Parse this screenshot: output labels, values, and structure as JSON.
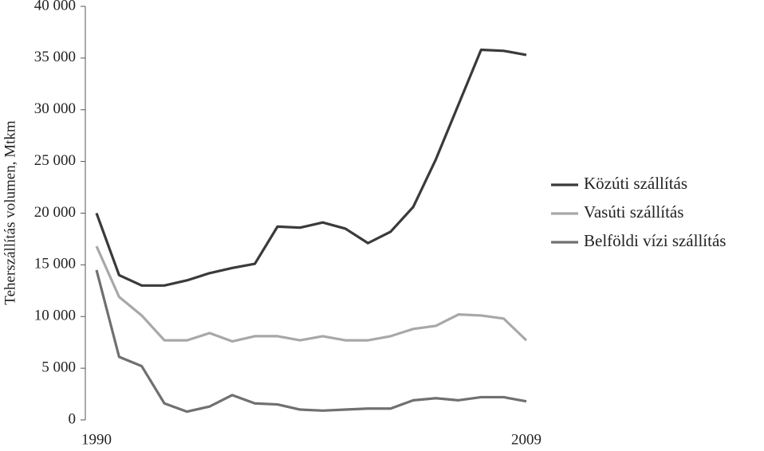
{
  "chart_data": {
    "type": "line",
    "y_label": "Teherszállítás volumen, Mtkm",
    "categories": [
      "1990",
      null,
      null,
      null,
      null,
      null,
      null,
      null,
      null,
      null,
      null,
      null,
      null,
      null,
      null,
      null,
      null,
      null,
      null,
      "2009"
    ],
    "series": [
      {
        "name": "Közúti szállítás",
        "color": "#3a3a3a",
        "values": [
          20000,
          14000,
          13000,
          13000,
          13500,
          14200,
          14700,
          15100,
          18700,
          18600,
          19100,
          18500,
          17100,
          18200,
          20600,
          25200,
          30500,
          35800,
          35700,
          35300
        ]
      },
      {
        "name": "Vasúti szállítás",
        "color": "#a8a8a8",
        "values": [
          16800,
          11900,
          10100,
          7700,
          7700,
          8400,
          7600,
          8100,
          8100,
          7700,
          8100,
          7700,
          7700,
          8100,
          8800,
          9100,
          10200,
          10100,
          9800,
          7700
        ]
      },
      {
        "name": "Belföldi vízi szállítás",
        "color": "#707070",
        "values": [
          14500,
          6100,
          5200,
          1600,
          800,
          1300,
          2400,
          1600,
          1500,
          1000,
          900,
          1000,
          1100,
          1100,
          1900,
          2100,
          1900,
          2200,
          2200,
          1800
        ]
      }
    ],
    "ylim": [
      0,
      40000
    ],
    "yticks": [
      0,
      {
        "value": 5000,
        "label": "5 000"
      },
      {
        "value": 10000,
        "label": "10 000"
      },
      {
        "value": 15000,
        "label": "15 000"
      },
      {
        "value": 20000,
        "label": "20 000"
      },
      {
        "value": 25000,
        "label": "25 000"
      },
      {
        "value": 30000,
        "label": "30 000"
      },
      {
        "value": 35000,
        "label": "35 000"
      },
      {
        "value": 40000,
        "label": "40 000"
      }
    ],
    "grid": false,
    "legend": "right"
  }
}
